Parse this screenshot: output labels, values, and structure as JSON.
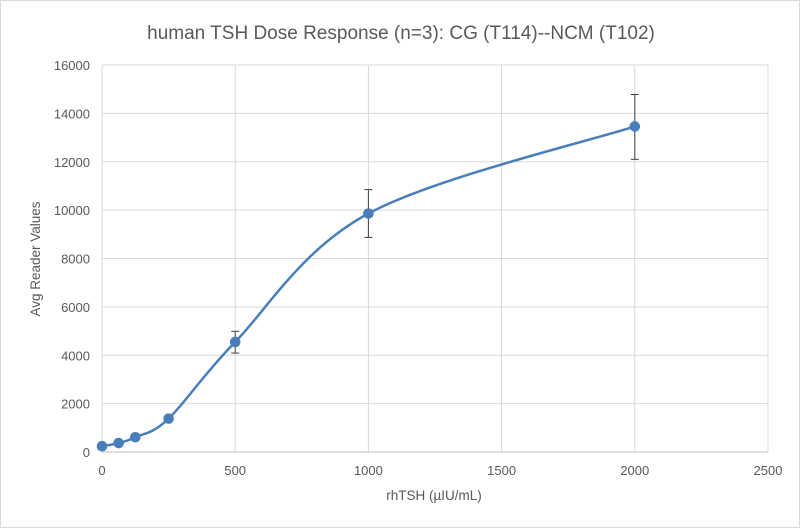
{
  "chart_data": {
    "type": "scatter",
    "title": "human TSH Dose Response (n=3): CG (T114)--NCM (T102)",
    "xlabel": "rhTSH (µIU/mL)",
    "ylabel": "Avg Reader Values",
    "xlim": [
      0,
      2500
    ],
    "ylim": [
      0,
      16000
    ],
    "xticks": [
      "0",
      "500",
      "1000",
      "1500",
      "2000",
      "2500"
    ],
    "yticks": [
      "0",
      "2000",
      "4000",
      "6000",
      "8000",
      "10000",
      "12000",
      "14000",
      "16000"
    ],
    "grid": true,
    "smooth_line": true,
    "series": [
      {
        "name": "Avg Reader Values",
        "color": "#4a7ebb",
        "x": [
          0,
          62.5,
          125,
          250,
          500,
          1000,
          2000
        ],
        "y": [
          240,
          370,
          610,
          1380,
          4550,
          9860,
          13460
        ],
        "error_low": [
          null,
          null,
          null,
          null,
          4090,
          8870,
          12100
        ],
        "error_high": [
          null,
          null,
          null,
          null,
          4990,
          10850,
          14780
        ]
      }
    ]
  }
}
